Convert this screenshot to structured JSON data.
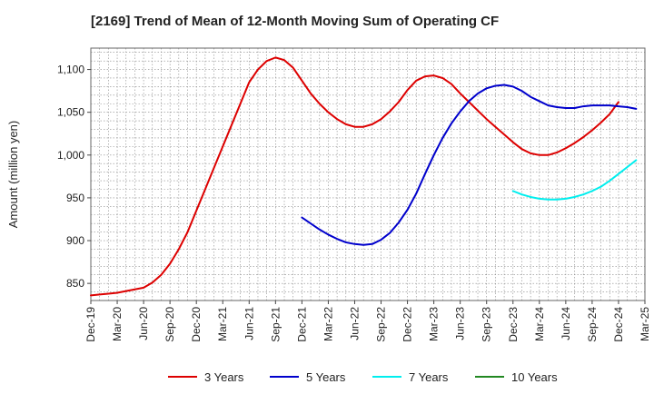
{
  "chart_data": {
    "type": "line",
    "title": "[2169]  Trend of Mean of 12-Month Moving Sum of Operating CF",
    "xlabel": "",
    "ylabel": "Amount (million yen)",
    "ylim": [
      830,
      1125
    ],
    "yticks": [
      850,
      900,
      950,
      1000,
      1050,
      1100
    ],
    "ytick_labels": [
      "850",
      "900",
      "950",
      "1,000",
      "1,050",
      "1,100"
    ],
    "x_start": "Dec-19",
    "x_months": 63,
    "xtick_labels": [
      "Dec-19",
      "Mar-20",
      "Jun-20",
      "Sep-20",
      "Dec-20",
      "Mar-21",
      "Jun-21",
      "Sep-21",
      "Dec-21",
      "Mar-22",
      "Jun-22",
      "Sep-22",
      "Dec-22",
      "Mar-23",
      "Jun-23",
      "Sep-23",
      "Dec-23",
      "Mar-24",
      "Jun-24",
      "Sep-24",
      "Dec-24",
      "Mar-25"
    ],
    "grid": true,
    "legend_position": "bottom",
    "series": [
      {
        "name": "3 Years",
        "color": "#dd0000",
        "start_index": 0,
        "values": [
          836,
          837,
          838,
          839,
          841,
          843,
          845,
          851,
          860,
          873,
          890,
          910,
          935,
          960,
          985,
          1010,
          1035,
          1060,
          1085,
          1100,
          1110,
          1114,
          1111,
          1102,
          1087,
          1072,
          1060,
          1050,
          1042,
          1036,
          1033,
          1033,
          1036,
          1042,
          1051,
          1062,
          1076,
          1087,
          1092,
          1093,
          1090,
          1083,
          1072,
          1062,
          1052,
          1042,
          1033,
          1024,
          1015,
          1007,
          1002,
          1000,
          1000,
          1003,
          1008,
          1014,
          1021,
          1029,
          1038,
          1048,
          1062
        ]
      },
      {
        "name": "5 Years",
        "color": "#0000cc",
        "start_index": 24,
        "values": [
          927,
          920,
          913,
          907,
          902,
          898,
          896,
          895,
          896,
          901,
          909,
          921,
          936,
          955,
          978,
          1000,
          1020,
          1037,
          1051,
          1063,
          1072,
          1078,
          1081,
          1082,
          1080,
          1075,
          1068,
          1063,
          1058,
          1056,
          1055,
          1055,
          1057,
          1058,
          1058,
          1058,
          1057,
          1056,
          1054
        ]
      },
      {
        "name": "7 Years",
        "color": "#00eeee",
        "start_index": 48,
        "values": [
          958,
          954,
          951,
          949,
          948,
          948,
          949,
          951,
          954,
          958,
          963,
          970,
          978,
          986,
          994
        ]
      },
      {
        "name": "10 Years",
        "color": "#228822",
        "start_index": 0,
        "values": []
      }
    ]
  }
}
